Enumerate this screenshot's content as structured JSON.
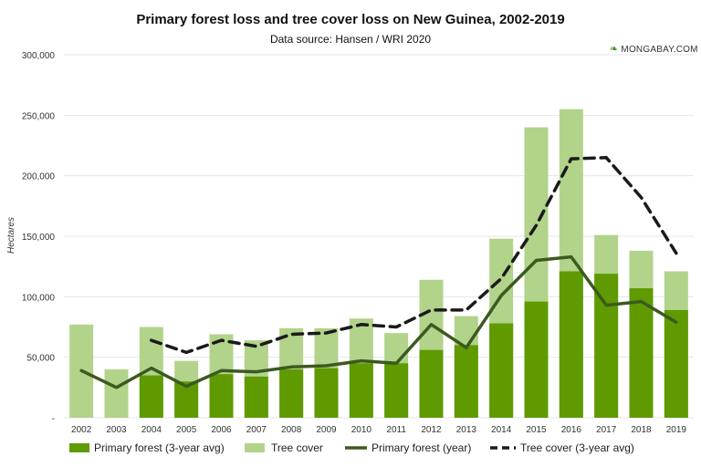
{
  "header": {
    "title": "Primary forest loss and tree cover loss on New Guinea, 2002-2019",
    "subtitle": "Data source: Hansen / WRI 2020",
    "brand": "MONGABAY.COM"
  },
  "colors": {
    "primary_bar": "#5e9a00",
    "tree_bar": "#b2d38a",
    "primary_line": "#3b5a1f",
    "tree_line": "#1a1a1a",
    "grid": "#e6e6e6"
  },
  "chart_data": {
    "type": "bar",
    "title": "Primary forest loss and tree cover loss on New Guinea, 2002-2019",
    "subtitle": "Data source: Hansen / WRI 2020",
    "xlabel": "",
    "ylabel": "Hectares",
    "ylim": [
      0,
      300000
    ],
    "yticks": [
      0,
      50000,
      100000,
      150000,
      200000,
      250000,
      300000
    ],
    "ytick_labels": [
      "-",
      "50,000",
      "100,000",
      "150,000",
      "200,000",
      "250,000",
      "300,000"
    ],
    "grid": true,
    "legend_position": "bottom",
    "categories": [
      "2002",
      "2003",
      "2004",
      "2005",
      "2006",
      "2007",
      "2008",
      "2009",
      "2010",
      "2011",
      "2012",
      "2013",
      "2014",
      "2015",
      "2016",
      "2017",
      "2018",
      "2019"
    ],
    "series": [
      {
        "name": "Primary forest (3-year avg)",
        "kind": "bar",
        "values": [
          null,
          null,
          35000,
          30000,
          36000,
          34000,
          40000,
          41000,
          45000,
          45000,
          56000,
          60000,
          78000,
          96000,
          121000,
          119000,
          107000,
          89000
        ]
      },
      {
        "name": "Tree cover",
        "kind": "bar",
        "values": [
          77000,
          40000,
          75000,
          47000,
          69000,
          64000,
          74000,
          74000,
          82000,
          70000,
          114000,
          84000,
          148000,
          240000,
          255000,
          151000,
          138000,
          121000
        ]
      },
      {
        "name": "Primary forest (year)",
        "kind": "line",
        "values": [
          39000,
          25000,
          41000,
          26000,
          39000,
          38000,
          42000,
          43000,
          47000,
          45000,
          77000,
          58000,
          101000,
          130000,
          133000,
          93000,
          96000,
          79000
        ]
      },
      {
        "name": "Tree cover (3-year avg)",
        "kind": "dashed-line",
        "values": [
          null,
          null,
          64000,
          54000,
          64000,
          59000,
          69000,
          70000,
          77000,
          75000,
          89000,
          89000,
          115000,
          159000,
          214000,
          215000,
          182000,
          136000
        ]
      }
    ]
  }
}
